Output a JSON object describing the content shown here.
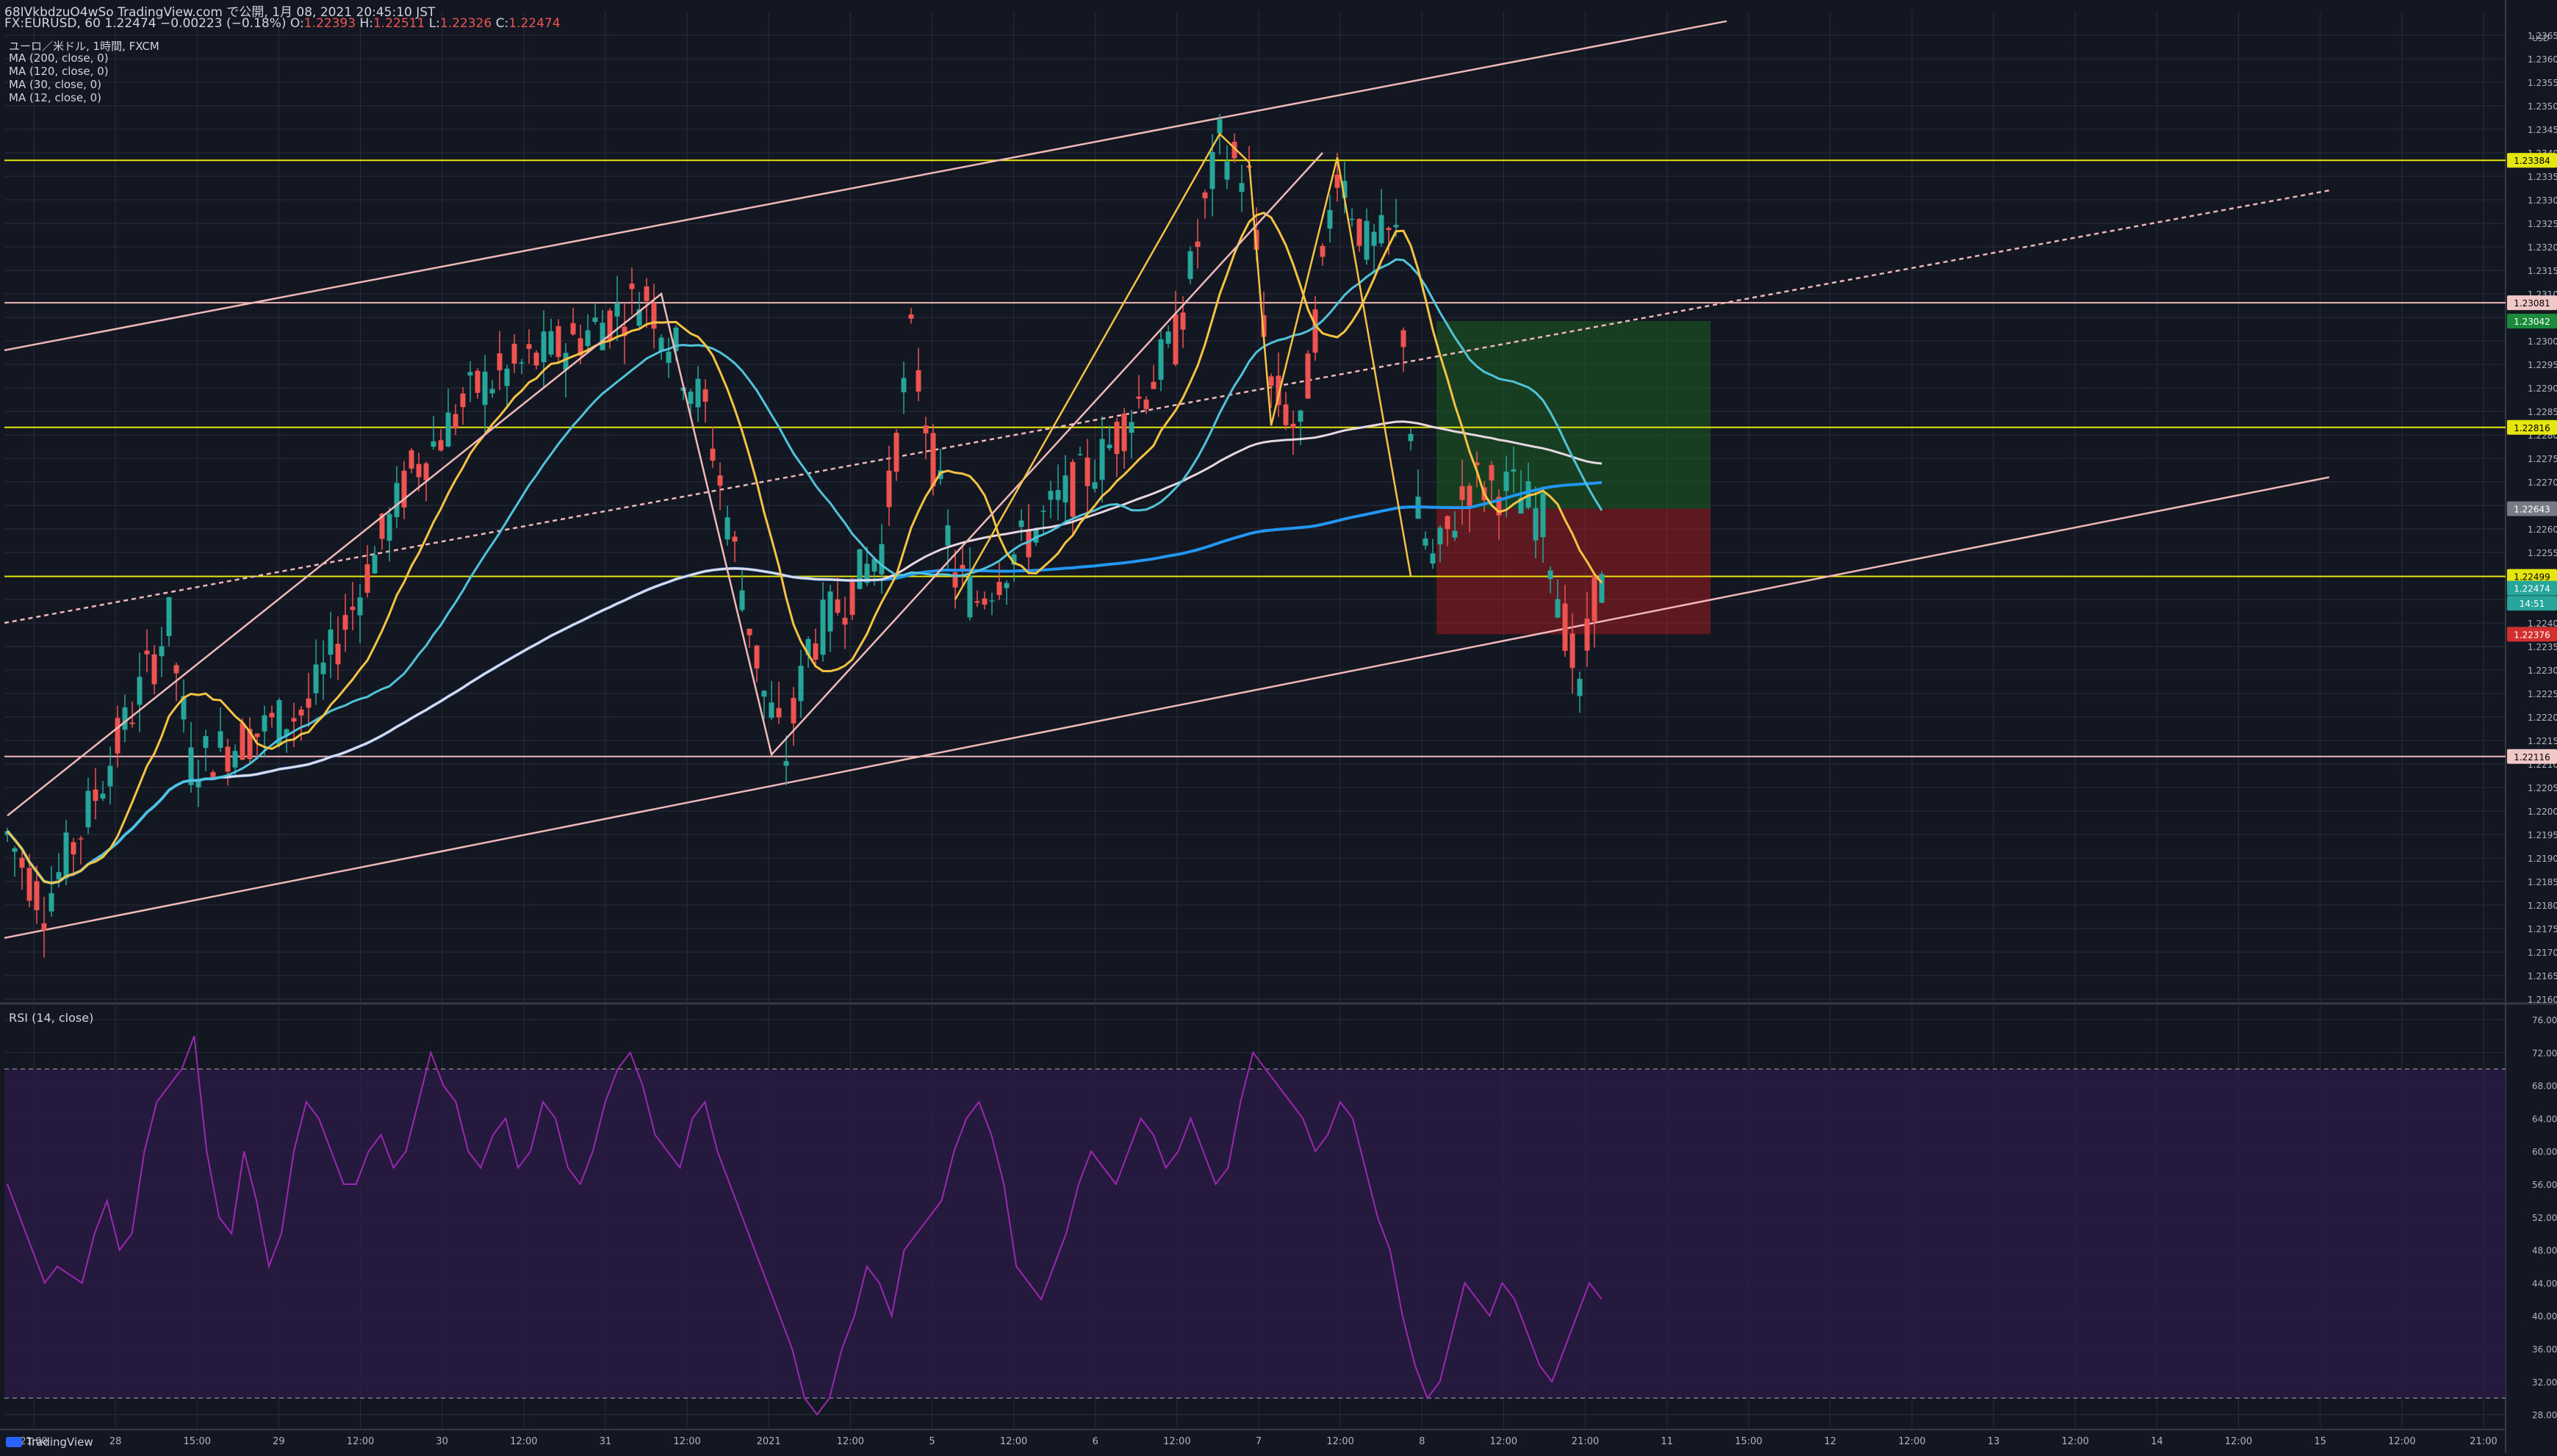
{
  "header": {
    "line1": "68IVkbdzuO4wSo TradingView.com で公開, 1月 08, 2021 20:45:10 JST",
    "symbol": "FX:EURUSD, 60",
    "last": "1.22474",
    "change": "−0.00223 (−0.18%)",
    "o_label": "O:",
    "o": "1.22393",
    "h_label": "H:",
    "h": "1.22511",
    "l_label": "L:",
    "l": "1.22326",
    "c_label": "C:",
    "c": "1.22474"
  },
  "legend": [
    "ユーロ／米ドル, 1時間, FXCM",
    "MA (200, close, 0)",
    "MA (120, close, 0)",
    "MA (30, close, 0)",
    "MA (12, close, 0)"
  ],
  "rsi_title": "RSI (14, close)",
  "brand": "TradingView",
  "currency_label": "USD",
  "colors": {
    "bg": "#131722",
    "grid": "#2a2e39",
    "up": "#26a69a",
    "down": "#ef5350",
    "ma200": "#2196f3",
    "ma120": "#e6d7e0",
    "ma30": "#4fc3d9",
    "ma12": "#f5c242",
    "channel": "#f0b8b8",
    "hline": "#e5e510",
    "rsi": "#9c27b0",
    "rsi_band": "#2a1a45"
  },
  "chart_data": [
    {
      "type": "candlestick",
      "symbol": "FX:EURUSD",
      "interval": "60",
      "y_axis": {
        "min": 1.216,
        "max": 1.237,
        "step": 0.0005,
        "ticks": [
          "1.23650",
          "1.23600",
          "1.23550",
          "1.23500",
          "1.23450",
          "1.23400",
          "1.23350",
          "1.23300",
          "1.23250",
          "1.23200",
          "1.23150",
          "1.23100",
          "1.23050",
          "1.23000",
          "1.22950",
          "1.22900",
          "1.22850",
          "1.22800",
          "1.22750",
          "1.22700",
          "1.22650",
          "1.22600",
          "1.22550",
          "1.22500",
          "1.22450",
          "1.22400",
          "1.22350",
          "1.22300",
          "1.22250",
          "1.22200",
          "1.22150",
          "1.22100",
          "1.22050",
          "1.22000",
          "1.21950",
          "1.21900",
          "1.21850",
          "1.21800",
          "1.21750",
          "1.21700",
          "1.21650",
          "1.21600"
        ]
      },
      "x_axis_ticks": [
        "21:00",
        "28",
        "15:00",
        "29",
        "12:00",
        "30",
        "12:00",
        "31",
        "12:00",
        "2021",
        "12:00",
        "5",
        "12:00",
        "6",
        "12:00",
        "7",
        "12:00",
        "8",
        "12:00",
        "21:00",
        "11",
        "15:00",
        "12",
        "12:00",
        "13",
        "12:00",
        "14",
        "12:00",
        "15",
        "12:00",
        "21:00"
      ],
      "price_labels": [
        {
          "value": 1.23384,
          "text": "1.23384",
          "bg": "#e5e510",
          "fg": "#000000"
        },
        {
          "value": 1.23081,
          "text": "1.23081",
          "bg": "#f0c8c8",
          "fg": "#000000"
        },
        {
          "value": 1.23042,
          "text": "1.23042",
          "bg": "#1b8a3a",
          "fg": "#ffffff"
        },
        {
          "value": 1.22816,
          "text": "1.22816",
          "bg": "#e5e510",
          "fg": "#000000"
        },
        {
          "value": 1.22643,
          "text": "1.22643",
          "bg": "#787b86",
          "fg": "#ffffff"
        },
        {
          "value": 1.22499,
          "text": "1.22499",
          "bg": "#e5e510",
          "fg": "#000000"
        },
        {
          "value": 1.22474,
          "text": "1.22474",
          "bg": "#26a69a",
          "fg": "#ffffff"
        },
        {
          "value": 1.22442,
          "text": "14:51",
          "bg": "#26a69a",
          "fg": "#ffffff"
        },
        {
          "value": 1.22376,
          "text": "1.22376",
          "bg": "#d32f2f",
          "fg": "#ffffff"
        },
        {
          "value": 1.22116,
          "text": "1.22116",
          "bg": "#f0c8c8",
          "fg": "#000000"
        }
      ],
      "horizontal_lines": [
        1.23384,
        1.22816,
        1.22499
      ],
      "pink_lines": [
        1.23081,
        1.22116
      ],
      "position_tool": {
        "entry": 1.22643,
        "target": 1.23042,
        "stop": 1.22376
      }
    },
    {
      "type": "line",
      "name": "RSI (14, close)",
      "y_axis": {
        "min": 26,
        "max": 76,
        "ticks": [
          "76.00",
          "72.00",
          "68.00",
          "64.00",
          "60.00",
          "56.00",
          "52.00",
          "48.00",
          "44.00",
          "40.00",
          "36.00",
          "32.00",
          "28.00"
        ]
      },
      "band": [
        30,
        70
      ],
      "series_description": "RSI oscillates between ~28 and ~74 across the visible period",
      "values": [
        56,
        52,
        48,
        44,
        46,
        45,
        44,
        50,
        54,
        48,
        50,
        60,
        66,
        68,
        70,
        74,
        60,
        52,
        50,
        60,
        54,
        46,
        50,
        60,
        66,
        64,
        60,
        56,
        56,
        60,
        62,
        58,
        60,
        66,
        72,
        68,
        66,
        60,
        58,
        62,
        64,
        58,
        60,
        66,
        64,
        58,
        56,
        60,
        66,
        70,
        72,
        68,
        62,
        60,
        58,
        64,
        66,
        60,
        56,
        52,
        48,
        44,
        40,
        36,
        30,
        28,
        30,
        36,
        40,
        46,
        44,
        40,
        48,
        50,
        52,
        54,
        60,
        64,
        66,
        62,
        56,
        46,
        44,
        42,
        46,
        50,
        56,
        60,
        58,
        56,
        60,
        64,
        62,
        58,
        60,
        64,
        60,
        56,
        58,
        66,
        72,
        70,
        68,
        66,
        64,
        60,
        62,
        66,
        64,
        58,
        52,
        48,
        40,
        34,
        30,
        32,
        38,
        44,
        42,
        40,
        44,
        42,
        38,
        34,
        32,
        36,
        40,
        44,
        42
      ]
    }
  ]
}
